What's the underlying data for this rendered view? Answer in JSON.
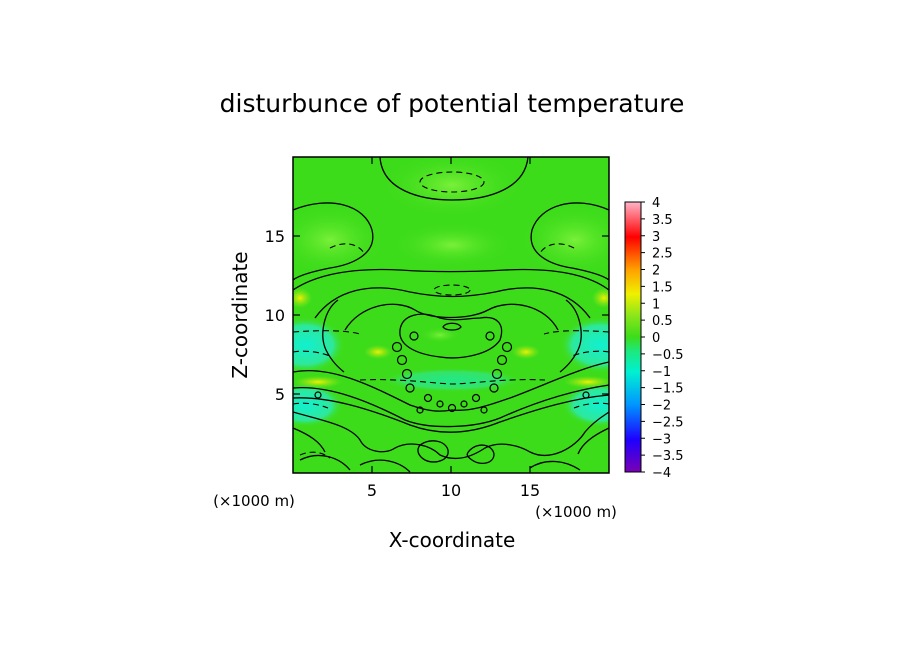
{
  "chart_data": {
    "type": "heatmap",
    "title": "disturbunce of potential temperature",
    "xlabel": "X-coordinate",
    "ylabel": "Z-coordinate",
    "x_unit": "(×1000 m)",
    "z_unit": "(×1000 m)",
    "xlim": [
      0,
      20
    ],
    "ylim": [
      0,
      20
    ],
    "x_ticks": [
      5,
      10,
      15
    ],
    "y_ticks": [
      5,
      10,
      15
    ],
    "colorbar": {
      "min": -4,
      "max": 4,
      "step": 0.5,
      "labels": [
        "4",
        "3.5",
        "3",
        "2.5",
        "2",
        "1.5",
        "1",
        "0.5",
        "0",
        "−0.5",
        "−1",
        "−1.5",
        "−2",
        "−2.5",
        "−3",
        "−3.5",
        "−4"
      ]
    },
    "colors": {
      "background_field": "#3ddc1a",
      "cold_anomaly": "#19f0b4",
      "warm_anomaly": "#e6e600"
    }
  }
}
